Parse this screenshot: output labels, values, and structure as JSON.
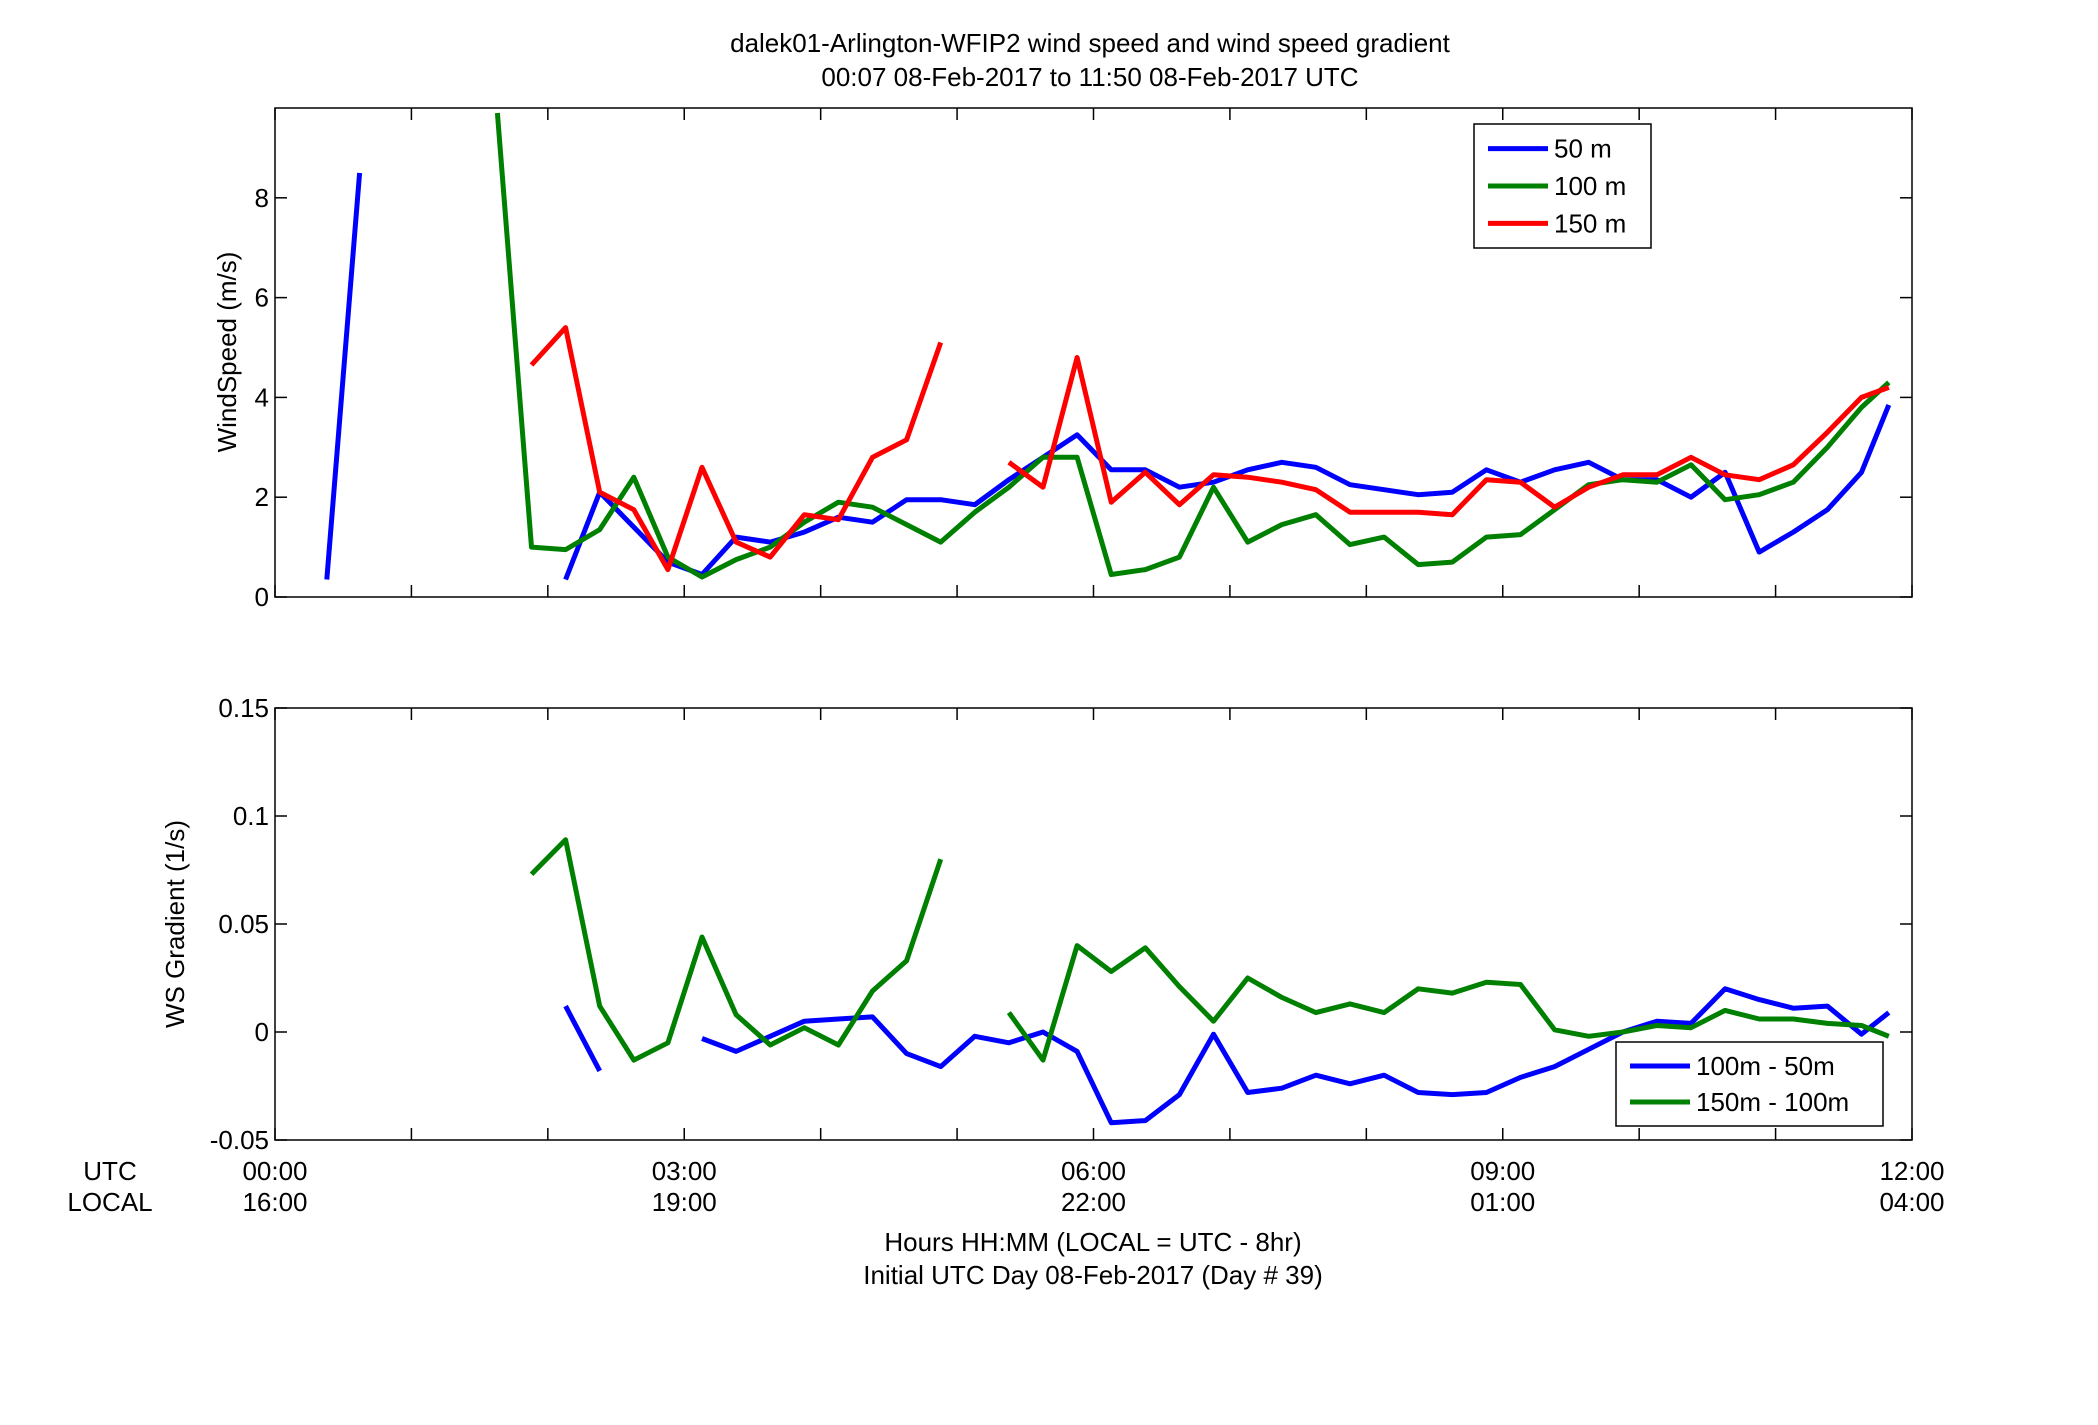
{
  "figure": {
    "title_line1": "dalek01-Arlington-WFIP2  wind speed and wind speed gradient",
    "title_line2": "00:07 08-Feb-2017 to 11:50 08-Feb-2017  UTC",
    "xlabel_line1": "Hours HH:MM  (LOCAL = UTC - 8hr)",
    "xlabel_line2": "Initial UTC Day 08-Feb-2017 (Day # 39)",
    "utc_row_label": "UTC",
    "local_row_label": "LOCAL",
    "x_ticks_utc": [
      "00:00",
      "03:00",
      "06:00",
      "09:00",
      "12:00"
    ],
    "x_ticks_local": [
      "16:00",
      "19:00",
      "22:00",
      "01:00",
      "04:00"
    ],
    "x_tick_hours": [
      0,
      3,
      6,
      9,
      12
    ],
    "colors": {
      "blue": "#0000ff",
      "green": "#008000",
      "red": "#ff0000"
    }
  },
  "chart_data": [
    {
      "type": "line",
      "id": "windspeed",
      "title": "",
      "xlabel": "",
      "ylabel": "WindSpeed (m/s)",
      "xlim": [
        0,
        12
      ],
      "ylim": [
        0,
        9.8
      ],
      "yticks": [
        0,
        2,
        4,
        6,
        8
      ],
      "ytick_labels": [
        "0",
        "2",
        "4",
        "6",
        "8"
      ],
      "legend_position": "top-right",
      "series": [
        {
          "name": "50 m",
          "color": "#0000ff",
          "x": [
            0.38,
            0.62,
            null,
            2.13,
            2.38,
            2.63,
            2.88,
            3.13,
            3.38,
            3.63,
            3.88,
            4.13,
            4.38,
            4.63,
            4.88,
            5.13,
            5.38,
            5.63,
            5.88,
            6.13,
            6.38,
            6.63,
            6.88,
            7.13,
            7.38,
            7.63,
            7.88,
            8.13,
            8.38,
            8.63,
            8.88,
            9.13,
            9.38,
            9.63,
            9.88,
            10.13,
            10.38,
            10.63,
            10.88,
            11.13,
            11.38,
            11.63,
            11.83
          ],
          "y": [
            0.35,
            8.5,
            null,
            0.35,
            2.1,
            1.4,
            0.7,
            0.45,
            1.2,
            1.1,
            1.3,
            1.6,
            1.5,
            1.95,
            1.95,
            1.85,
            2.35,
            2.8,
            3.25,
            2.55,
            2.55,
            2.2,
            2.3,
            2.55,
            2.7,
            2.6,
            2.25,
            2.15,
            2.05,
            2.1,
            2.55,
            2.3,
            2.55,
            2.7,
            2.35,
            2.35,
            2.0,
            2.5,
            0.9,
            1.3,
            1.75,
            2.5,
            3.85
          ]
        },
        {
          "name": "100 m",
          "color": "#008000",
          "x": [
            1.63,
            1.88,
            2.13,
            2.38,
            2.63,
            2.88,
            3.13,
            3.38,
            3.63,
            3.88,
            4.13,
            4.38,
            4.63,
            4.88,
            5.13,
            5.38,
            5.63,
            5.88,
            6.13,
            6.38,
            6.63,
            6.88,
            7.13,
            7.38,
            7.63,
            7.88,
            8.13,
            8.38,
            8.63,
            8.88,
            9.13,
            9.38,
            9.63,
            9.88,
            10.13,
            10.38,
            10.63,
            10.88,
            11.13,
            11.38,
            11.63,
            11.83
          ],
          "y": [
            9.7,
            1.0,
            0.95,
            1.35,
            2.4,
            0.8,
            0.4,
            0.75,
            1.0,
            1.5,
            1.9,
            1.8,
            1.45,
            1.1,
            1.7,
            2.2,
            2.8,
            2.8,
            0.45,
            0.55,
            0.8,
            2.2,
            1.1,
            1.45,
            1.65,
            1.05,
            1.2,
            0.65,
            0.7,
            1.2,
            1.25,
            1.75,
            2.25,
            2.35,
            2.3,
            2.65,
            1.95,
            2.05,
            2.3,
            3.0,
            3.8,
            4.3
          ]
        },
        {
          "name": "150 m",
          "color": "#ff0000",
          "x": [
            1.88,
            2.13,
            2.38,
            2.63,
            2.88,
            3.13,
            3.38,
            3.63,
            3.88,
            4.13,
            4.38,
            4.63,
            4.88,
            null,
            5.38,
            5.63,
            5.88,
            6.13,
            6.38,
            6.63,
            6.88,
            7.13,
            7.38,
            7.63,
            7.88,
            8.13,
            8.38,
            8.63,
            8.88,
            9.13,
            9.38,
            9.63,
            9.88,
            10.13,
            10.38,
            10.63,
            10.88,
            11.13,
            11.38,
            11.63,
            11.83
          ],
          "y": [
            4.65,
            5.4,
            2.1,
            1.75,
            0.55,
            2.6,
            1.1,
            0.8,
            1.65,
            1.55,
            2.8,
            3.15,
            5.1,
            null,
            2.7,
            2.2,
            4.8,
            1.9,
            2.5,
            1.85,
            2.45,
            2.4,
            2.3,
            2.15,
            1.7,
            1.7,
            1.7,
            1.65,
            2.35,
            2.3,
            1.8,
            2.2,
            2.45,
            2.45,
            2.8,
            2.45,
            2.35,
            2.65,
            3.3,
            4.0,
            4.2
          ]
        }
      ]
    },
    {
      "type": "line",
      "id": "gradient",
      "title": "",
      "xlabel": "",
      "ylabel": "WS Gradient (1/s)",
      "xlim": [
        0,
        12
      ],
      "ylim": [
        -0.05,
        0.15
      ],
      "yticks": [
        -0.05,
        0,
        0.05,
        0.1,
        0.15
      ],
      "ytick_labels": [
        "-0.05",
        "0",
        "0.05",
        "0.1",
        "0.15"
      ],
      "legend_position": "bottom-right",
      "series": [
        {
          "name": "100m - 50m",
          "color": "#0000ff",
          "x": [
            2.13,
            2.38,
            null,
            3.13,
            3.38,
            3.63,
            3.88,
            4.13,
            4.38,
            4.63,
            4.88,
            5.13,
            5.38,
            5.63,
            5.88,
            6.13,
            6.38,
            6.63,
            6.88,
            7.13,
            7.38,
            7.63,
            7.88,
            8.13,
            8.38,
            8.63,
            8.88,
            9.13,
            9.38,
            9.63,
            9.88,
            10.13,
            10.38,
            10.63,
            10.88,
            11.13,
            11.38,
            11.63,
            11.83
          ],
          "y": [
            0.012,
            -0.018,
            null,
            -0.003,
            -0.009,
            -0.002,
            0.005,
            0.006,
            0.007,
            -0.01,
            -0.016,
            -0.002,
            -0.005,
            0.0,
            -0.009,
            -0.042,
            -0.041,
            -0.029,
            -0.001,
            -0.028,
            -0.026,
            -0.02,
            -0.024,
            -0.02,
            -0.028,
            -0.029,
            -0.028,
            -0.021,
            -0.016,
            -0.008,
            0.0,
            0.005,
            0.004,
            0.02,
            0.015,
            0.011,
            0.012,
            -0.001,
            0.009
          ]
        },
        {
          "name": "150m - 100m",
          "color": "#008000",
          "x": [
            1.88,
            2.13,
            2.38,
            2.63,
            2.88,
            3.13,
            3.38,
            3.63,
            3.88,
            4.13,
            4.38,
            4.63,
            4.88,
            null,
            5.38,
            5.63,
            5.88,
            6.13,
            6.38,
            6.63,
            6.88,
            7.13,
            7.38,
            7.63,
            7.88,
            8.13,
            8.38,
            8.63,
            8.88,
            9.13,
            9.38,
            9.63,
            9.88,
            10.13,
            10.38,
            10.63,
            10.88,
            11.13,
            11.38,
            11.63,
            11.83
          ],
          "y": [
            0.073,
            0.089,
            0.012,
            -0.013,
            -0.005,
            0.044,
            0.008,
            -0.006,
            0.002,
            -0.006,
            0.019,
            0.033,
            0.08,
            null,
            0.009,
            -0.013,
            0.04,
            0.028,
            0.039,
            0.021,
            0.005,
            0.025,
            0.016,
            0.009,
            0.013,
            0.009,
            0.02,
            0.018,
            0.023,
            0.022,
            0.001,
            -0.002,
            0.0,
            0.003,
            0.002,
            0.01,
            0.006,
            0.006,
            0.004,
            0.003,
            -0.002
          ]
        }
      ]
    }
  ]
}
